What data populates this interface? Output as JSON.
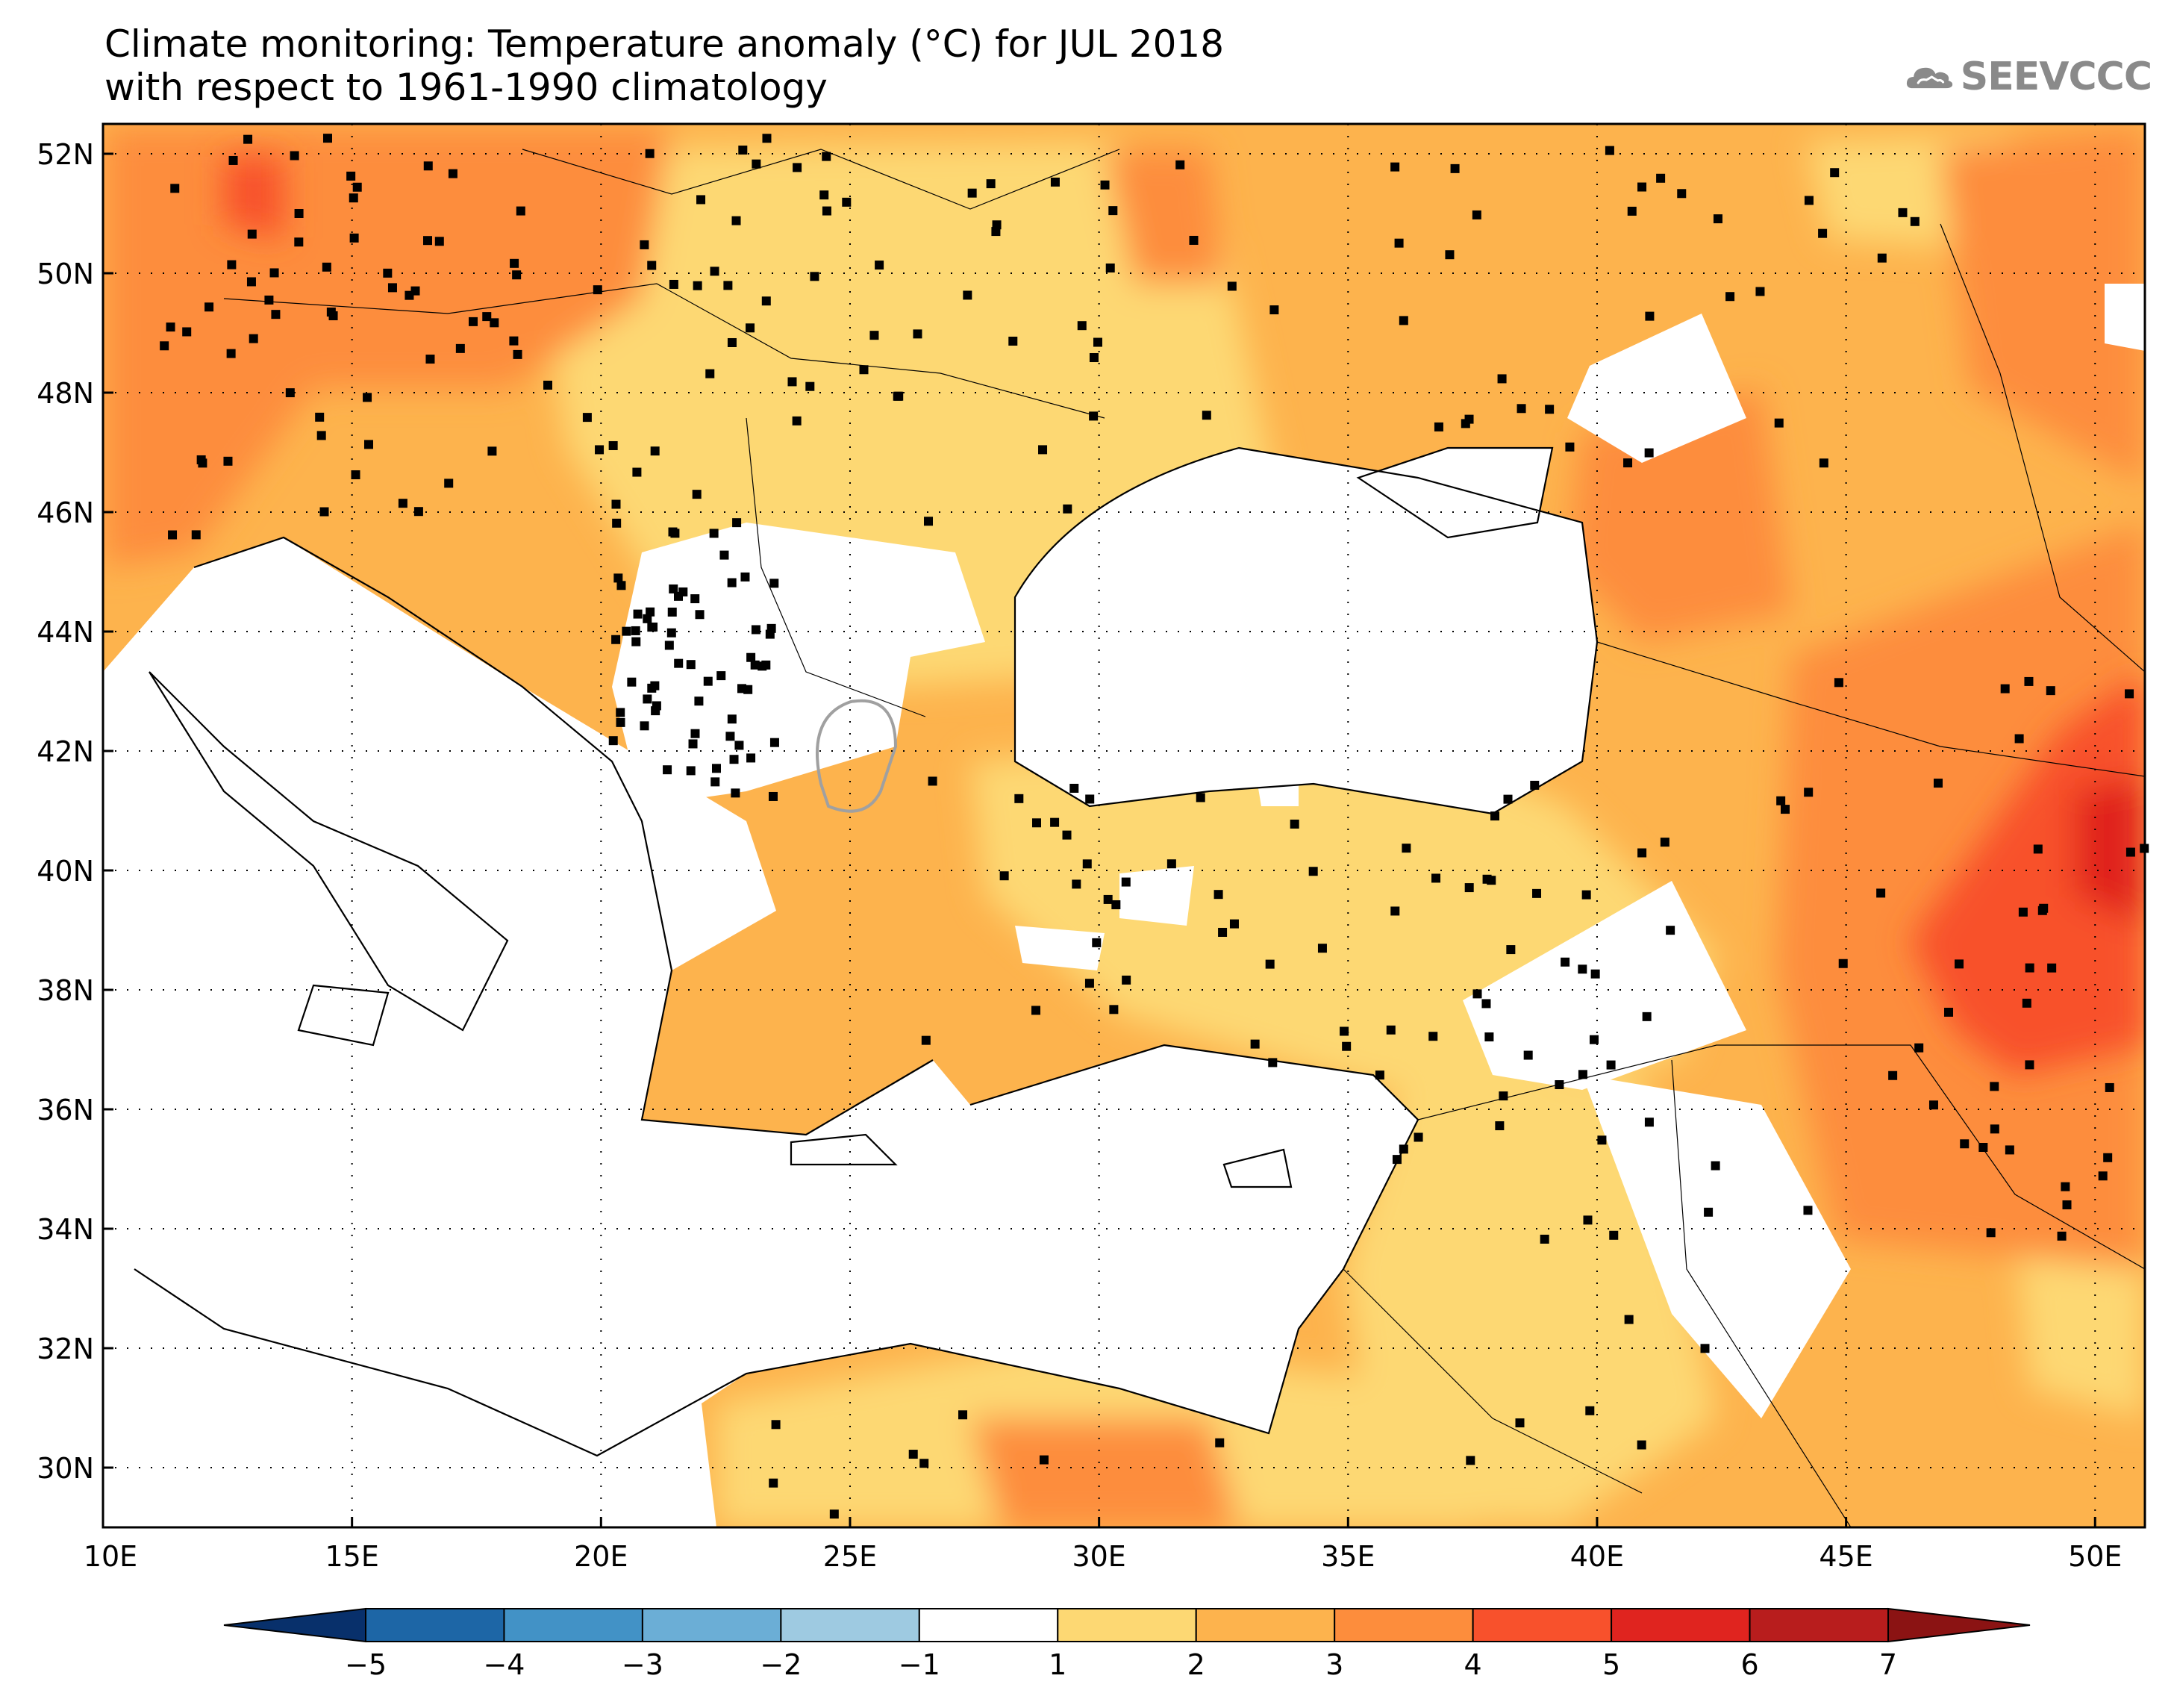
{
  "title": {
    "line1": "Climate monitoring: Temperature anomaly (°C) for JUL 2018",
    "line2": "with respect to 1961-1990 climatology"
  },
  "logo": {
    "text": "SEEVCCC",
    "icon": "cloud-icon"
  },
  "map": {
    "lon_range": [
      10,
      51
    ],
    "lat_range": [
      29,
      52.5
    ],
    "lon_ticks": [
      "10E",
      "15E",
      "20E",
      "25E",
      "30E",
      "35E",
      "40E",
      "45E",
      "50E"
    ],
    "lat_ticks": [
      "52N",
      "50N",
      "48N",
      "46N",
      "44N",
      "42N",
      "40N",
      "38N",
      "36N",
      "34N",
      "32N",
      "30N"
    ],
    "grid": "dotted meridians and parallels",
    "stations": "black square station markers"
  },
  "colorbar": {
    "labels": [
      "-5",
      "-4",
      "-3",
      "-2",
      "-1",
      "1",
      "2",
      "3",
      "4",
      "5",
      "6",
      "7"
    ],
    "colors": [
      "#08306b",
      "#1d66a6",
      "#4292c6",
      "#6baed6",
      "#9ecae1",
      "#ffffff",
      "#fdd873",
      "#fdb34d",
      "#fd8d3c",
      "#f8512c",
      "#e0241f",
      "#b81d1d",
      "#8b1313"
    ]
  }
}
